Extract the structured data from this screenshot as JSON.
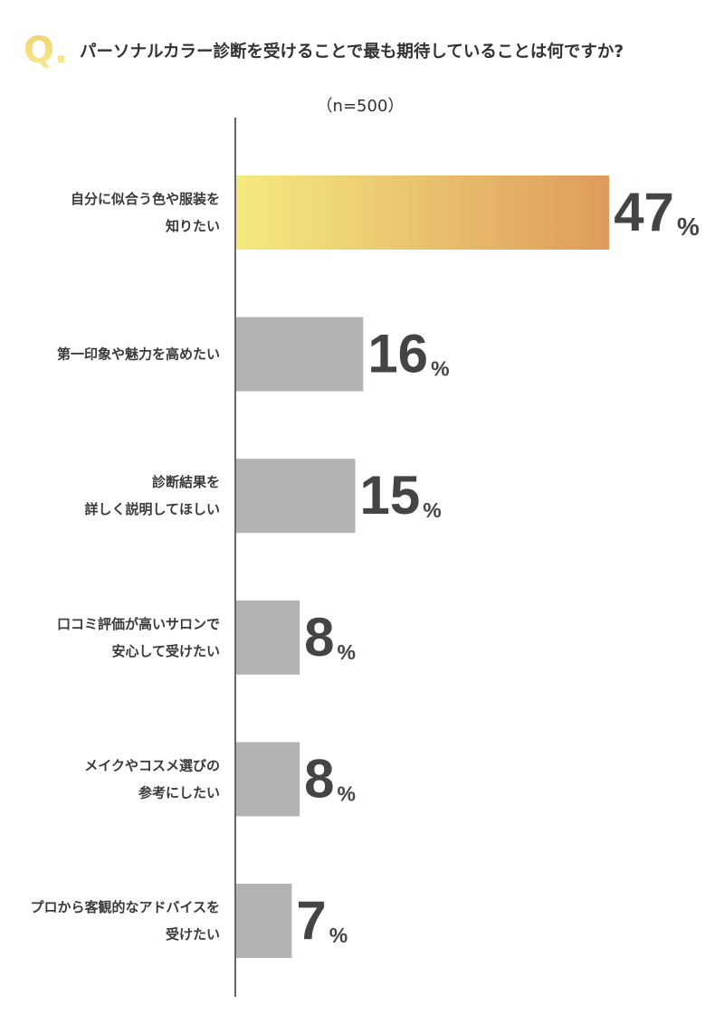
{
  "chart_data": {
    "type": "bar",
    "orientation": "horizontal",
    "question_mark": "Q.",
    "title": "パーソナルカラー診断を受けることで最も期待していることは何ですか?",
    "subtitle": "（n=500）",
    "categories": [
      "自分に似合う色や服装を\n知りたい",
      "第一印象や魅力を高めたい",
      "診断結果を\n詳しく説明してほしい",
      "口コミ評価が高いサロンで\n安心して受けたい",
      "メイクやコスメ選びの\n参考にしたい",
      "プロから客観的なアドバイスを\n受けたい"
    ],
    "values": [
      47,
      16,
      15,
      8,
      8,
      7
    ],
    "value_labels": [
      "47%",
      "16%",
      "15%",
      "8%",
      "8%",
      "7%"
    ],
    "color": "#b3b3b3",
    "highlight_index": 0,
    "highlight_colors": [
      "#f4ea80",
      "#de9b5c"
    ]
  }
}
